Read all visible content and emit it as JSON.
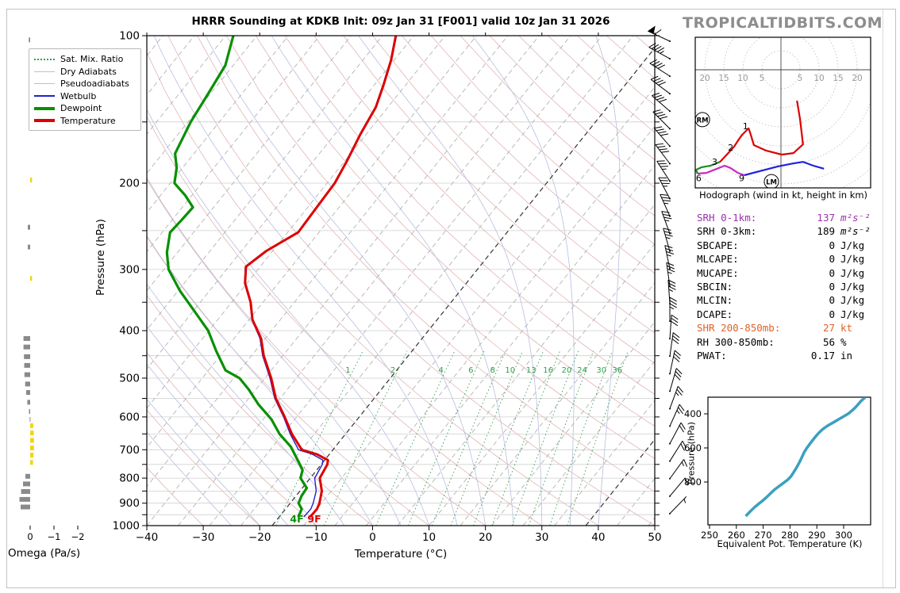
{
  "window": {
    "logo": "TROPICALTIDBITS.COM"
  },
  "title": "HRRR Sounding at KDKB Init: 09z Jan 31 [F001] valid 10z Jan 31 2026",
  "skewt": {
    "xlabel": "Temperature (°C)",
    "ylabel": "Pressure (hPa)",
    "x_ticks": [
      -40,
      -30,
      -20,
      -10,
      0,
      10,
      20,
      30,
      40,
      50
    ],
    "p_labels": [
      100,
      200,
      300,
      400,
      500,
      600,
      700,
      800,
      900,
      1000
    ],
    "legend": [
      {
        "label": "Sat. Mix. Ratio",
        "color": "#2f9e4f",
        "style": "dotted"
      },
      {
        "label": "Dry Adiabats",
        "color": "#e2b5b5",
        "style": "solid"
      },
      {
        "label": "Pseudoadiabats",
        "color": "#b9bede",
        "style": "solid"
      },
      {
        "label": "Wetbulb",
        "color": "#2020cc",
        "style": "solid-med"
      },
      {
        "label": "Dewpoint",
        "color": "#089000",
        "style": "solid-thick"
      },
      {
        "label": "Temperature",
        "color": "#dd0000",
        "style": "solid-thick"
      }
    ],
    "surface_labels": [
      {
        "text": "4F",
        "color": "#089000"
      },
      {
        "text": "9F",
        "color": "#dd0000"
      }
    ]
  },
  "omega": {
    "xlabel": "Omega (Pa/s)",
    "x_ticks": [
      0,
      -1,
      -2
    ]
  },
  "hodograph": {
    "caption": "Hodograph (wind in kt, height in km)",
    "ring_labels": [
      20,
      15,
      10,
      5,
      5,
      10,
      15,
      20
    ]
  },
  "thetae": {
    "xlabel": "Equivalent Pot. Temperature (K)",
    "ylabel": "Pressure (hPa)",
    "x_ticks": [
      250,
      260,
      270,
      280,
      290,
      300
    ],
    "y_ticks": [
      400,
      600,
      800
    ]
  },
  "stats": {
    "rows": [
      {
        "label": "SRH 0-1km:",
        "value": "137",
        "unit": "m²s⁻²",
        "color": "#9b30b0"
      },
      {
        "label": "SRH 0-3km:",
        "value": "189",
        "unit": "m²s⁻²",
        "color": "#000000"
      },
      {
        "label": "SBCAPE:",
        "value": "0",
        "unit": "J/kg",
        "color": "#000000"
      },
      {
        "label": "MLCAPE:",
        "value": "0",
        "unit": "J/kg",
        "color": "#000000"
      },
      {
        "label": "MUCAPE:",
        "value": "0",
        "unit": "J/kg",
        "color": "#000000"
      },
      {
        "label": "SBCIN:",
        "value": "0",
        "unit": "J/kg",
        "color": "#000000"
      },
      {
        "label": "MLCIN:",
        "value": "0",
        "unit": "J/kg",
        "color": "#000000"
      },
      {
        "label": "DCAPE:",
        "value": "0",
        "unit": "J/kg",
        "color": "#000000"
      },
      {
        "label": "SHR 200-850mb:",
        "value": "27",
        "unit": "kt",
        "color": "#e0622a"
      },
      {
        "label": "RH 300-850mb:",
        "value": "56",
        "unit": "%",
        "color": "#000000"
      },
      {
        "label": "PWAT:",
        "value": "0.17",
        "unit": "in",
        "color": "#000000"
      }
    ]
  },
  "chart_data": [
    {
      "type": "line",
      "name": "skewt_sounding",
      "title": "HRRR Sounding at KDKB",
      "xlabel": "Temperature (°C)",
      "ylabel": "Pressure (hPa)",
      "xlim": [
        -40,
        50
      ],
      "pressure_range": [
        100,
        1000
      ],
      "skew": "45deg-style (0.8 px/px)",
      "mixing_ratio_lines_g_kg": [
        1,
        2,
        4,
        6,
        8,
        10,
        13,
        16,
        20,
        24,
        30,
        36
      ],
      "series": [
        {
          "name": "Temperature",
          "color": "#dd0000",
          "width": 3,
          "points_p_T": [
            [
              960,
              -12.3
            ],
            [
              925,
              -12.2
            ],
            [
              900,
              -12.6
            ],
            [
              850,
              -13.9
            ],
            [
              800,
              -16.1
            ],
            [
              775,
              -16.4
            ],
            [
              750,
              -16.7
            ],
            [
              735,
              -17.2
            ],
            [
              715,
              -20.0
            ],
            [
              700,
              -23.3
            ],
            [
              650,
              -27.3
            ],
            [
              600,
              -31.0
            ],
            [
              550,
              -35.2
            ],
            [
              500,
              -38.9
            ],
            [
              450,
              -43.4
            ],
            [
              415,
              -46.3
            ],
            [
              380,
              -50.5
            ],
            [
              350,
              -53.3
            ],
            [
              320,
              -57.0
            ],
            [
              296,
              -59.2
            ],
            [
              275,
              -57.8
            ],
            [
              252,
              -54.8
            ],
            [
              230,
              -55.0
            ],
            [
              200,
              -55.3
            ],
            [
              180,
              -56.3
            ],
            [
              159,
              -57.7
            ],
            [
              140,
              -58.8
            ],
            [
              126,
              -60.6
            ],
            [
              112,
              -62.8
            ],
            [
              100,
              -65.4
            ]
          ]
        },
        {
          "name": "Wetbulb",
          "color": "#2020cc",
          "width": 1.4,
          "points_p_T": [
            [
              960,
              -13.4
            ],
            [
              925,
              -13.3
            ],
            [
              900,
              -13.7
            ],
            [
              850,
              -14.9
            ],
            [
              800,
              -17.0
            ],
            [
              775,
              -17.3
            ],
            [
              750,
              -17.6
            ],
            [
              735,
              -18.1
            ],
            [
              715,
              -20.8
            ],
            [
              700,
              -23.9
            ],
            [
              650,
              -27.6
            ],
            [
              600,
              -31.2
            ],
            [
              550,
              -35.4
            ],
            [
              500,
              -39.1
            ],
            [
              450,
              -43.6
            ],
            [
              415,
              -46.5
            ],
            [
              380,
              -50.6
            ],
            [
              350,
              -53.4
            ],
            [
              320,
              -57.1
            ],
            [
              296,
              -59.3
            ],
            [
              275,
              -57.9
            ],
            [
              252,
              -54.9
            ],
            [
              230,
              -55.1
            ],
            [
              200,
              -55.4
            ],
            [
              180,
              -56.4
            ],
            [
              159,
              -57.8
            ],
            [
              140,
              -58.9
            ],
            [
              126,
              -60.7
            ],
            [
              112,
              -62.9
            ],
            [
              100,
              -65.5
            ]
          ]
        },
        {
          "name": "Dewpoint",
          "color": "#089000",
          "width": 3.2,
          "points_p_T": [
            [
              960,
              -14.4
            ],
            [
              925,
              -14.9
            ],
            [
              900,
              -16.3
            ],
            [
              870,
              -16.8
            ],
            [
              838,
              -17.0
            ],
            [
              800,
              -19.5
            ],
            [
              770,
              -20.3
            ],
            [
              745,
              -21.9
            ],
            [
              690,
              -25.7
            ],
            [
              650,
              -29.5
            ],
            [
              607,
              -33.0
            ],
            [
              565,
              -37.5
            ],
            [
              527,
              -41.3
            ],
            [
              500,
              -44.5
            ],
            [
              482,
              -48.1
            ],
            [
              440,
              -52.5
            ],
            [
              400,
              -56.8
            ],
            [
              365,
              -62.0
            ],
            [
              332,
              -67.4
            ],
            [
              300,
              -72.5
            ],
            [
              277,
              -75.2
            ],
            [
              252,
              -77.5
            ],
            [
              238,
              -77.2
            ],
            [
              224,
              -77.0
            ],
            [
              212,
              -80.0
            ],
            [
              200,
              -83.7
            ],
            [
              186,
              -85.5
            ],
            [
              174,
              -87.8
            ],
            [
              150,
              -89.5
            ],
            [
              130,
              -90.5
            ],
            [
              115,
              -91.4
            ],
            [
              100,
              -94.2
            ]
          ]
        }
      ],
      "surface_values": {
        "temperature": "9F",
        "dewpoint": "4F"
      }
    },
    {
      "type": "bar",
      "name": "omega_profile",
      "xlabel": "Omega (Pa/s)",
      "xlim": [
        0.5,
        -2.5
      ],
      "bar_colors": {
        "positive_sinking": "#8a8a8a",
        "negative_rising": "#f2d417"
      },
      "points_p_omega": [
        [
          102,
          0.06
        ],
        [
          197,
          -0.08
        ],
        [
          246,
          0.1
        ],
        [
          270,
          0.1
        ],
        [
          313,
          -0.08
        ],
        [
          415,
          0.28
        ],
        [
          432,
          0.28
        ],
        [
          452,
          0.26
        ],
        [
          471,
          0.25
        ],
        [
          492,
          0.24
        ],
        [
          514,
          0.21
        ],
        [
          535,
          0.17
        ],
        [
          560,
          0.12
        ],
        [
          585,
          0.05
        ],
        [
          607,
          0.02
        ],
        [
          625,
          -0.13
        ],
        [
          647,
          -0.15
        ],
        [
          670,
          -0.16
        ],
        [
          694,
          -0.16
        ],
        [
          718,
          -0.14
        ],
        [
          743,
          -0.12
        ],
        [
          793,
          0.2
        ],
        [
          822,
          0.3
        ],
        [
          852,
          0.38
        ],
        [
          884,
          0.45
        ],
        [
          916,
          0.4
        ]
      ]
    },
    {
      "type": "line",
      "name": "hodograph",
      "caption": "Hodograph (wind in kt, height in km)",
      "units": "kt",
      "ring_interval": 5,
      "segments": [
        {
          "name": "0-3km",
          "color": "#dd0000",
          "points_uv": [
            [
              4.2,
              -8.1
            ],
            [
              5.0,
              -12.9
            ],
            [
              5.8,
              -19.6
            ],
            [
              3.3,
              -21.9
            ],
            [
              0.2,
              -22.3
            ],
            [
              -4.0,
              -21.2
            ],
            [
              -7.1,
              -19.8
            ],
            [
              -8.1,
              -16.5
            ],
            [
              -8.5,
              -15.4
            ],
            [
              -10.2,
              -17.1
            ],
            [
              -11.2,
              -18.5
            ],
            [
              -12.3,
              -20.2
            ],
            [
              -14.4,
              -22.5
            ],
            [
              -16.0,
              -24.2
            ]
          ]
        },
        {
          "name": "3-6km",
          "color": "#1e8b1e",
          "points_uv": [
            [
              -16.0,
              -24.2
            ],
            [
              -18.5,
              -25.2
            ],
            [
              -20.8,
              -25.6
            ],
            [
              -22.3,
              -26.3
            ],
            [
              -21.9,
              -27.3
            ]
          ]
        },
        {
          "name": "6-9km",
          "color": "#c32cc3",
          "points_uv": [
            [
              -21.9,
              -27.3
            ],
            [
              -19.6,
              -27.1
            ],
            [
              -17.5,
              -26.3
            ],
            [
              -14.8,
              -25.2
            ],
            [
              -13.3,
              -25.8
            ],
            [
              -11.3,
              -27.1
            ],
            [
              -9.6,
              -27.7
            ]
          ]
        },
        {
          "name": "9km+",
          "color": "#2020dd",
          "points_uv": [
            [
              -9.6,
              -27.7
            ],
            [
              -5.0,
              -26.5
            ],
            [
              -0.8,
              -25.4
            ],
            [
              3.3,
              -24.6
            ],
            [
              5.8,
              -24.2
            ],
            [
              8.5,
              -25.2
            ],
            [
              11.3,
              -26.0
            ]
          ]
        }
      ],
      "height_labels": [
        {
          "km": "1",
          "u": -9.3,
          "v": -14.8
        },
        {
          "km": "2",
          "u": -13.2,
          "v": -20.4
        },
        {
          "km": "3",
          "u": -17.4,
          "v": -24.2
        },
        {
          "km": "6",
          "u": -21.6,
          "v": -28.4
        },
        {
          "km": "9",
          "u": -10.3,
          "v": -28.4
        }
      ],
      "markers": [
        {
          "label": "RM",
          "u": -20.6,
          "v": -13.1
        },
        {
          "label": "LM",
          "u": -2.5,
          "v": -29.4
        }
      ]
    },
    {
      "type": "line",
      "name": "theta_e_profile",
      "xlabel": "Equivalent Pot. Temperature (K)",
      "ylabel": "Pressure (hPa)",
      "xlim": [
        250,
        310
      ],
      "color": "#3aa0c0",
      "points_K_p": [
        [
          263.5,
          1000
        ],
        [
          265.2,
          972
        ],
        [
          266.8,
          948
        ],
        [
          268.3,
          928
        ],
        [
          269.8,
          910
        ],
        [
          271,
          893
        ],
        [
          272.3,
          873
        ],
        [
          274,
          848
        ],
        [
          275.8,
          826
        ],
        [
          277.5,
          806
        ],
        [
          279.2,
          786
        ],
        [
          280.4,
          766
        ],
        [
          281.3,
          744
        ],
        [
          282.2,
          722
        ],
        [
          283,
          700
        ],
        [
          283.8,
          676
        ],
        [
          284.5,
          652
        ],
        [
          285.2,
          628
        ],
        [
          286.2,
          602
        ],
        [
          287.3,
          578
        ],
        [
          288.4,
          556
        ],
        [
          289.5,
          534
        ],
        [
          290.7,
          512
        ],
        [
          292.2,
          490
        ],
        [
          294,
          470
        ],
        [
          296,
          452
        ],
        [
          298,
          434
        ],
        [
          300,
          415
        ],
        [
          301.8,
          398
        ],
        [
          303.2,
          380
        ],
        [
          304.4,
          362
        ],
        [
          305.4,
          344
        ],
        [
          306.4,
          326
        ],
        [
          307.4,
          312
        ],
        [
          308,
          304
        ]
      ]
    },
    {
      "type": "barbs",
      "name": "wind_barbs",
      "units": "kt",
      "note": "top of column to bottom",
      "levels_dir_spd": [
        [
          295,
          60
        ],
        [
          299,
          45
        ],
        [
          303,
          44
        ],
        [
          307,
          43
        ],
        [
          311,
          42
        ],
        [
          315,
          41
        ],
        [
          319,
          40
        ],
        [
          323,
          40
        ],
        [
          327,
          39
        ],
        [
          332,
          38
        ],
        [
          336,
          38
        ],
        [
          340,
          37
        ],
        [
          344,
          37
        ],
        [
          348,
          36
        ],
        [
          352,
          36
        ],
        [
          356,
          35
        ],
        [
          0,
          35
        ],
        [
          4,
          34
        ],
        [
          8,
          33
        ],
        [
          12,
          32
        ],
        [
          16,
          30
        ],
        [
          20,
          28
        ],
        [
          24,
          26
        ],
        [
          28,
          24
        ],
        [
          32,
          21
        ],
        [
          36,
          18
        ],
        [
          40,
          12
        ],
        [
          44,
          5
        ]
      ]
    }
  ]
}
